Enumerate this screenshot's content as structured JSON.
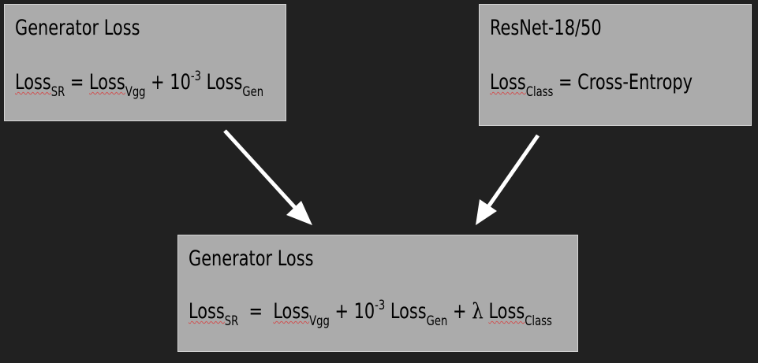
{
  "colors": {
    "background": "#212121",
    "box_fill": "#ababab",
    "box_border": "#d4d4d4",
    "arrow": "#ffffff",
    "spellcheck": "#d05050"
  },
  "boxes": {
    "generator": {
      "title": "Generator Loss",
      "formula": {
        "t1": "Loss",
        "s1": "SR",
        "t2": " = ",
        "t3": "Loss",
        "s3": "Vgg",
        "t4": " + 10",
        "p4": "-3",
        "t5": " Loss",
        "s5": "Gen"
      }
    },
    "resnet": {
      "title": "ResNet-18/50",
      "formula": {
        "t1": "Loss",
        "s1": "Class",
        "t2": " = Cross-Entropy"
      }
    },
    "combined": {
      "title": "Generator Loss",
      "formula": {
        "t1": "Loss",
        "s1": "SR",
        "t2": "  =  ",
        "t3": "Loss",
        "s3": "Vgg",
        "t4": " + 10",
        "p4": "-3",
        "t5": " Loss",
        "s5": "Gen",
        "t6": " + ",
        "lambda": "λ",
        "t7": " ",
        "t8": "Loss",
        "s8": "Class"
      }
    }
  },
  "arrows": [
    {
      "from": "generator",
      "to": "combined"
    },
    {
      "from": "resnet",
      "to": "combined"
    }
  ]
}
